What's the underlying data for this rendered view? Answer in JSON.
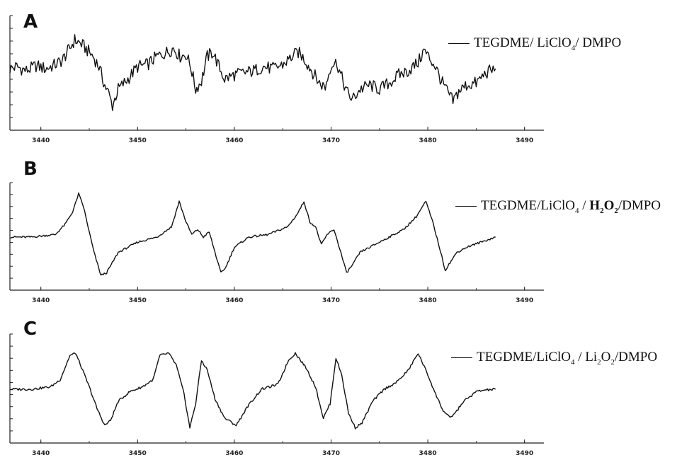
{
  "chart_data": [
    {
      "type": "line",
      "panel_label": "A",
      "legend": [
        "TEGDME/ LiClO",
        "4",
        "/ DMPO"
      ],
      "legend_placement": "right",
      "x_ticks": [
        3440,
        3450,
        3460,
        3470,
        3480,
        3490
      ],
      "x_tick_labels": [
        "3440",
        "3450",
        "3460",
        "3470",
        "3480",
        "3490"
      ],
      "xlim": [
        3436.8,
        3492
      ],
      "ylim": [
        -1,
        1
      ],
      "grid": false,
      "series": [
        {
          "x": [
            3436.8,
            3437.5,
            3438.5,
            3439.5,
            3440.5,
            3441.5,
            3442.2,
            3443.0,
            3443.5,
            3444.2,
            3444.8,
            3445.4,
            3446.0,
            3446.6,
            3447.0,
            3447.4,
            3448.0,
            3449.0,
            3450.0,
            3451.0,
            3452.0,
            3453.0,
            3453.7,
            3454.4,
            3455.0,
            3455.5,
            3456.0,
            3456.6,
            3457.2,
            3457.8,
            3458.4,
            3459.0,
            3460.0,
            3461.0,
            3462.0,
            3463.0,
            3464.0,
            3465.0,
            3466.0,
            3466.6,
            3467.2,
            3468.0,
            3468.8,
            3469.4,
            3470.0,
            3470.6,
            3471.0,
            3471.6,
            3472.2,
            3473.0,
            3474.0,
            3475.0,
            3476.0,
            3477.0,
            3478.0,
            3479.0,
            3479.6,
            3480.2,
            3480.8,
            3481.4,
            3482.0,
            3482.6,
            3483.2,
            3484.0,
            3485.0,
            3486.0,
            3487.0
          ],
          "y": [
            0.05,
            0.1,
            0.0,
            0.12,
            0.05,
            0.15,
            0.25,
            0.55,
            0.75,
            0.65,
            0.5,
            0.35,
            0.1,
            -0.35,
            -0.55,
            -0.85,
            -0.45,
            -0.2,
            0.1,
            0.15,
            0.35,
            0.45,
            0.55,
            0.35,
            0.4,
            0.1,
            -0.45,
            -0.25,
            0.35,
            0.45,
            0.1,
            -0.2,
            -0.1,
            -0.05,
            0.0,
            0.1,
            0.05,
            0.15,
            0.35,
            0.45,
            0.3,
            0.0,
            -0.3,
            -0.4,
            0.15,
            0.2,
            -0.1,
            -0.5,
            -0.7,
            -0.45,
            -0.35,
            -0.45,
            -0.3,
            -0.1,
            0.0,
            0.2,
            0.5,
            0.3,
            0.1,
            -0.25,
            -0.5,
            -0.75,
            -0.5,
            -0.35,
            -0.3,
            -0.05,
            0.05
          ]
        }
      ]
    },
    {
      "type": "line",
      "panel_label": "B",
      "legend": [
        "TEGDME/LiClO",
        "4",
        " / ",
        "H",
        "2",
        "O",
        "2",
        "/DMPO"
      ],
      "legend_placement": "right",
      "x_ticks": [
        3440,
        3450,
        3460,
        3470,
        3480,
        3490
      ],
      "x_tick_labels": [
        "3440",
        "3450",
        "3460",
        "3470",
        "3480",
        "3490"
      ],
      "xlim": [
        3436.8,
        3492
      ],
      "ylim": [
        -1,
        1
      ],
      "grid": false,
      "series": [
        {
          "x": [
            3436.8,
            3439.0,
            3441.5,
            3442.5,
            3443.3,
            3443.9,
            3444.4,
            3445.0,
            3445.5,
            3446.2,
            3446.8,
            3448.0,
            3450.0,
            3452.0,
            3453.5,
            3454.3,
            3455.0,
            3455.6,
            3456.2,
            3456.8,
            3457.4,
            3458.0,
            3458.6,
            3459.1,
            3460.0,
            3461.5,
            3463.5,
            3465.5,
            3466.5,
            3467.2,
            3467.8,
            3468.4,
            3469.0,
            3469.6,
            3470.3,
            3471.0,
            3471.6,
            3472.2,
            3473.0,
            3474.5,
            3476.0,
            3477.5,
            3478.8,
            3479.8,
            3480.5,
            3481.2,
            3481.8,
            3482.3,
            3483.0,
            3484.0,
            3485.5,
            3487.0
          ],
          "y": [
            0.0,
            0.0,
            0.05,
            0.25,
            0.5,
            0.85,
            0.6,
            0.1,
            -0.3,
            -0.75,
            -0.7,
            -0.3,
            -0.1,
            0.0,
            0.2,
            0.7,
            0.3,
            0.05,
            0.15,
            0.0,
            0.1,
            -0.3,
            -0.7,
            -0.6,
            -0.2,
            0.0,
            0.05,
            0.2,
            0.45,
            0.7,
            0.3,
            0.2,
            -0.15,
            0.05,
            0.15,
            -0.3,
            -0.7,
            -0.55,
            -0.3,
            -0.15,
            0.0,
            0.15,
            0.4,
            0.7,
            0.3,
            -0.2,
            -0.65,
            -0.5,
            -0.3,
            -0.2,
            -0.1,
            0.0
          ]
        }
      ]
    },
    {
      "type": "line",
      "panel_label": "C",
      "legend": [
        "TEGDME/LiClO",
        "4",
        " / Li",
        "2",
        "O",
        "2",
        "/DMPO"
      ],
      "legend_placement": "right",
      "x_ticks": [
        3440,
        3450,
        3460,
        3470,
        3480,
        3490
      ],
      "x_tick_labels": [
        "3440",
        "3450",
        "3460",
        "3470",
        "3480",
        "3490"
      ],
      "xlim": [
        3436.8,
        3492
      ],
      "ylim": [
        -1,
        1
      ],
      "grid": false,
      "series": [
        {
          "x": [
            3436.8,
            3439.0,
            3441.0,
            3442.0,
            3443.0,
            3443.6,
            3444.2,
            3445.0,
            3445.8,
            3446.6,
            3447.2,
            3448.0,
            3449.2,
            3450.5,
            3451.6,
            3452.3,
            3453.2,
            3454.0,
            3454.8,
            3455.4,
            3456.0,
            3456.6,
            3457.2,
            3458.0,
            3459.0,
            3460.2,
            3461.4,
            3462.8,
            3464.5,
            3465.6,
            3466.3,
            3467.4,
            3468.4,
            3469.2,
            3469.9,
            3470.5,
            3471.1,
            3471.8,
            3472.5,
            3473.2,
            3474.3,
            3475.5,
            3476.8,
            3478.0,
            3479.0,
            3480.0,
            3480.8,
            3481.6,
            3482.3,
            3483.0,
            3483.7,
            3484.4,
            3485.0,
            3485.8,
            3487.0
          ],
          "y": [
            0.0,
            0.0,
            0.05,
            0.2,
            0.7,
            0.75,
            0.45,
            0.05,
            -0.4,
            -0.75,
            -0.65,
            -0.25,
            -0.05,
            0.05,
            0.2,
            0.7,
            0.75,
            0.5,
            -0.1,
            -0.8,
            -0.3,
            0.6,
            0.4,
            -0.2,
            -0.6,
            -0.75,
            -0.35,
            0.0,
            0.1,
            0.6,
            0.75,
            0.45,
            0.05,
            -0.6,
            -0.3,
            0.65,
            0.3,
            -0.5,
            -0.8,
            -0.7,
            -0.25,
            0.0,
            0.15,
            0.4,
            0.75,
            0.3,
            -0.1,
            -0.45,
            -0.6,
            -0.45,
            -0.25,
            -0.15,
            -0.05,
            -0.02,
            0.0
          ]
        }
      ]
    }
  ]
}
